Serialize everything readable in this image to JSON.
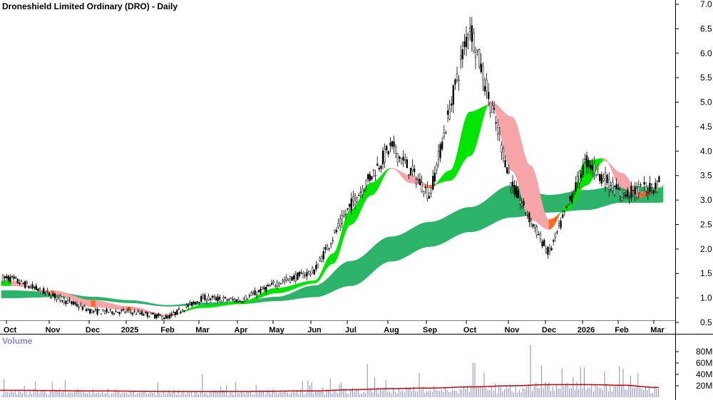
{
  "chart_data": {
    "type": "candlestick",
    "title": "Droneshield Limited Ordinary (DRO) - Daily",
    "x_tick_labels": [
      "Oct",
      "Nov",
      "Dec",
      "2025",
      "Feb",
      "Mar",
      "Apr",
      "May",
      "Jun",
      "Jul",
      "Aug",
      "Sep",
      "Oct",
      "Nov",
      "Dec",
      "2026",
      "Feb",
      "Mar"
    ],
    "y_ticks": [
      "0.5",
      "1.0",
      "1.5",
      "2.0",
      "2.5",
      "3.0",
      "3.5",
      "4.0",
      "4.5",
      "5.0",
      "5.5",
      "6.0",
      "6.5",
      "7.0"
    ],
    "ylim": [
      0.5,
      7.0
    ],
    "grid": false,
    "price_anchor_months": [
      0,
      1,
      2,
      3,
      4,
      5,
      6,
      7,
      8,
      9,
      10,
      11,
      12,
      13,
      14,
      15,
      16,
      17,
      17.45
    ],
    "price_anchor_values": [
      1.4,
      1.05,
      0.72,
      0.72,
      0.6,
      1.0,
      0.95,
      1.3,
      1.55,
      2.9,
      4.1,
      3.1,
      6.6,
      3.3,
      1.9,
      3.8,
      3.1,
      3.3,
      4.1
    ],
    "ribbons": [
      {
        "name": "short-term ribbon",
        "months": [
          0,
          1,
          2,
          3,
          4,
          5,
          6,
          7,
          8,
          8.5,
          9,
          9.5,
          10,
          10.5,
          11,
          11.5,
          12,
          12.5,
          13,
          13.5,
          14,
          14.5,
          15,
          15.5,
          16,
          16.5,
          17,
          17.45
        ],
        "fast": [
          1.35,
          1.08,
          0.82,
          0.75,
          0.63,
          0.85,
          0.92,
          1.2,
          1.35,
          1.9,
          2.8,
          3.35,
          3.65,
          3.35,
          3.25,
          3.6,
          4.8,
          4.95,
          3.6,
          2.6,
          2.4,
          2.9,
          3.8,
          3.85,
          3.25,
          3.05,
          3.2,
          3.55
        ],
        "slow": [
          1.25,
          1.15,
          0.95,
          0.82,
          0.65,
          0.8,
          0.88,
          1.1,
          1.3,
          1.7,
          2.5,
          3.1,
          3.65,
          3.5,
          3.3,
          3.4,
          3.9,
          5.0,
          4.7,
          3.7,
          2.6,
          2.8,
          3.3,
          3.8,
          3.55,
          3.15,
          3.2,
          3.45
        ]
      },
      {
        "name": "long-term ribbon",
        "months": [
          0,
          1,
          2,
          3,
          4,
          5,
          6,
          7,
          8,
          9,
          10,
          11,
          12,
          13,
          14,
          15,
          16,
          17,
          17.45
        ],
        "fast": [
          1.15,
          1.12,
          1.02,
          0.95,
          0.85,
          0.9,
          0.93,
          1.02,
          1.25,
          1.75,
          2.25,
          2.55,
          2.85,
          3.3,
          3.1,
          3.2,
          3.3,
          3.25,
          3.28
        ],
        "slow": [
          1.0,
          1.02,
          0.96,
          0.9,
          0.83,
          0.86,
          0.88,
          0.94,
          1.02,
          1.25,
          1.75,
          2.05,
          2.35,
          2.65,
          2.75,
          2.8,
          2.95,
          2.95,
          2.98
        ]
      }
    ],
    "volume": {
      "title": "Volume",
      "y_ticks": [
        "20M",
        "40M",
        "60M",
        "80M"
      ],
      "ylim": [
        0,
        90
      ],
      "average_months": [
        0,
        2,
        4,
        6,
        8,
        9,
        10,
        11,
        12,
        13,
        14,
        15,
        16,
        17,
        17.45
      ],
      "average_values": [
        12,
        11,
        10,
        10,
        11,
        13,
        15,
        16,
        18,
        20,
        22,
        22,
        21,
        17,
        17
      ],
      "peak_months": [
        5,
        9.4,
        12.1,
        13.5,
        13.8,
        15.5
      ],
      "peak_values": [
        40,
        58,
        60,
        92,
        55,
        45
      ]
    },
    "colors": {
      "up_green": "#00e600",
      "down_orange": "#ff6a1e",
      "pink": "#f7a4a8",
      "long_green": "#2db36a",
      "volume_bar": "#8888c8",
      "volume_avg": "#cc0000",
      "candle": "#000000"
    }
  }
}
